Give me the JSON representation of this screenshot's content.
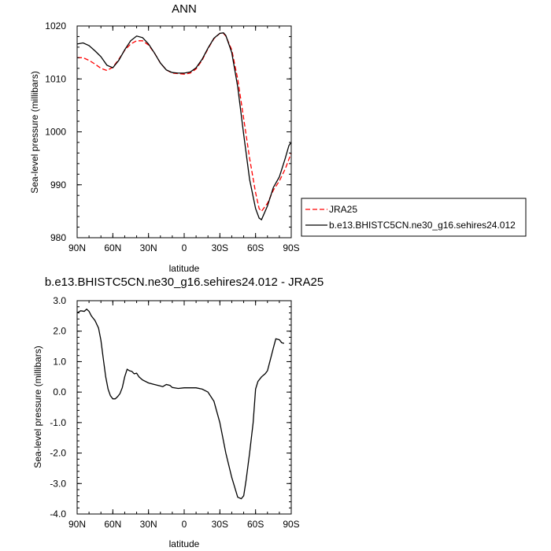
{
  "chart_data": [
    {
      "type": "line",
      "title": "ANN",
      "xlabel": "latitude",
      "ylabel": "Sea-level pressure (millibars)",
      "xlim": [
        90,
        -90
      ],
      "ylim": [
        980,
        1020
      ],
      "x_ticks": [
        90,
        60,
        30,
        0,
        -30,
        -60,
        -90
      ],
      "x_tick_labels": [
        "90N",
        "60N",
        "30N",
        "0",
        "30S",
        "60S",
        "90S"
      ],
      "y_ticks": [
        980,
        990,
        1000,
        1010,
        1020
      ],
      "y_tick_labels": [
        "980",
        "990",
        "1000",
        "1010",
        "1020"
      ],
      "legend_position": "right",
      "series": [
        {
          "name": "JRA25",
          "color": "#ff0000",
          "dash": "dashed",
          "points": [
            [
              90,
              1014.0
            ],
            [
              85,
              1014.0
            ],
            [
              80,
              1013.5
            ],
            [
              75,
              1012.8
            ],
            [
              70,
              1012.0
            ],
            [
              65,
              1011.6
            ],
            [
              60,
              1012.2
            ],
            [
              55,
              1013.7
            ],
            [
              50,
              1015.4
            ],
            [
              45,
              1016.6
            ],
            [
              40,
              1017.2
            ],
            [
              35,
              1017.2
            ],
            [
              30,
              1016.4
            ],
            [
              25,
              1014.9
            ],
            [
              20,
              1013.0
            ],
            [
              15,
              1011.7
            ],
            [
              10,
              1011.1
            ],
            [
              5,
              1011.0
            ],
            [
              0,
              1010.9
            ],
            [
              -5,
              1011.1
            ],
            [
              -10,
              1011.9
            ],
            [
              -15,
              1013.5
            ],
            [
              -20,
              1015.7
            ],
            [
              -25,
              1017.6
            ],
            [
              -30,
              1018.6
            ],
            [
              -33,
              1018.6
            ],
            [
              -35,
              1018.1
            ],
            [
              -40,
              1015.5
            ],
            [
              -45,
              1010.0
            ],
            [
              -50,
              1002.5
            ],
            [
              -55,
              995.0
            ],
            [
              -60,
              988.5
            ],
            [
              -63,
              985.5
            ],
            [
              -65,
              985.0
            ],
            [
              -70,
              986.5
            ],
            [
              -75,
              989.0
            ],
            [
              -80,
              990.7
            ],
            [
              -85,
              993.0
            ],
            [
              -90,
              996.0
            ]
          ]
        },
        {
          "name": "b.e13.BHISTC5CN.ne30_g16.sehires24.012",
          "color": "#000000",
          "dash": "solid",
          "points": [
            [
              90,
              1016.6
            ],
            [
              85,
              1016.8
            ],
            [
              80,
              1016.3
            ],
            [
              75,
              1015.3
            ],
            [
              70,
              1014.2
            ],
            [
              65,
              1012.6
            ],
            [
              60,
              1012.1
            ],
            [
              55,
              1013.5
            ],
            [
              50,
              1015.5
            ],
            [
              45,
              1017.2
            ],
            [
              40,
              1018.1
            ],
            [
              35,
              1017.8
            ],
            [
              30,
              1016.6
            ],
            [
              25,
              1014.9
            ],
            [
              20,
              1013.0
            ],
            [
              15,
              1011.7
            ],
            [
              10,
              1011.2
            ],
            [
              5,
              1011.1
            ],
            [
              0,
              1011.1
            ],
            [
              -5,
              1011.3
            ],
            [
              -10,
              1012.1
            ],
            [
              -15,
              1013.7
            ],
            [
              -20,
              1015.8
            ],
            [
              -25,
              1017.7
            ],
            [
              -30,
              1018.6
            ],
            [
              -33,
              1018.7
            ],
            [
              -35,
              1018.2
            ],
            [
              -40,
              1015.0
            ],
            [
              -45,
              1008.5
            ],
            [
              -50,
              999.5
            ],
            [
              -55,
              991.0
            ],
            [
              -60,
              985.5
            ],
            [
              -63,
              983.7
            ],
            [
              -65,
              983.4
            ],
            [
              -70,
              986.0
            ],
            [
              -75,
              989.5
            ],
            [
              -80,
              991.5
            ],
            [
              -85,
              995.0
            ],
            [
              -88,
              997.4
            ],
            [
              -90,
              998.0
            ]
          ]
        }
      ]
    },
    {
      "type": "line",
      "title": "b.e13.BHISTC5CN.ne30_g16.sehires24.012 - JRA25",
      "xlabel": "latitude",
      "ylabel": "Sea-level pressure (millibars)",
      "xlim": [
        90,
        -90
      ],
      "ylim": [
        -4.0,
        3.0
      ],
      "x_ticks": [
        90,
        60,
        30,
        0,
        -30,
        -60,
        -90
      ],
      "x_tick_labels": [
        "90N",
        "60N",
        "30N",
        "0",
        "30S",
        "60S",
        "90S"
      ],
      "y_ticks": [
        3.0,
        2.0,
        1.0,
        0.0,
        -1.0,
        -2.0,
        -3.0,
        -4.0
      ],
      "y_tick_labels": [
        "3.0",
        "2.0",
        "1.0",
        "0.0",
        "-1.0",
        "-2.0",
        "-3.0",
        "-4.0"
      ],
      "series": [
        {
          "color": "#000000",
          "dash": "solid",
          "points": [
            [
              90,
              2.6
            ],
            [
              87,
              2.67
            ],
            [
              84,
              2.65
            ],
            [
              82,
              2.72
            ],
            [
              80,
              2.65
            ],
            [
              78,
              2.5
            ],
            [
              75,
              2.35
            ],
            [
              72,
              2.1
            ],
            [
              70,
              1.7
            ],
            [
              68,
              1.1
            ],
            [
              66,
              0.5
            ],
            [
              64,
              0.1
            ],
            [
              62,
              -0.12
            ],
            [
              60,
              -0.22
            ],
            [
              58,
              -0.22
            ],
            [
              56,
              -0.15
            ],
            [
              54,
              -0.05
            ],
            [
              52,
              0.15
            ],
            [
              50,
              0.5
            ],
            [
              48,
              0.75
            ],
            [
              46,
              0.7
            ],
            [
              44,
              0.68
            ],
            [
              42,
              0.6
            ],
            [
              40,
              0.62
            ],
            [
              38,
              0.5
            ],
            [
              35,
              0.4
            ],
            [
              30,
              0.3
            ],
            [
              25,
              0.25
            ],
            [
              20,
              0.2
            ],
            [
              18,
              0.18
            ],
            [
              15,
              0.25
            ],
            [
              12,
              0.22
            ],
            [
              10,
              0.15
            ],
            [
              5,
              0.12
            ],
            [
              0,
              0.14
            ],
            [
              -5,
              0.14
            ],
            [
              -10,
              0.14
            ],
            [
              -15,
              0.1
            ],
            [
              -20,
              0.0
            ],
            [
              -25,
              -0.3
            ],
            [
              -30,
              -1.0
            ],
            [
              -35,
              -2.0
            ],
            [
              -40,
              -2.8
            ],
            [
              -45,
              -3.45
            ],
            [
              -48,
              -3.5
            ],
            [
              -50,
              -3.4
            ],
            [
              -52,
              -2.9
            ],
            [
              -55,
              -2.0
            ],
            [
              -58,
              -1.0
            ],
            [
              -60,
              0.1
            ],
            [
              -62,
              0.35
            ],
            [
              -65,
              0.5
            ],
            [
              -68,
              0.6
            ],
            [
              -70,
              0.7
            ],
            [
              -72,
              1.0
            ],
            [
              -75,
              1.45
            ],
            [
              -77,
              1.75
            ],
            [
              -80,
              1.72
            ],
            [
              -82,
              1.62
            ],
            [
              -84,
              1.6
            ]
          ]
        }
      ]
    }
  ]
}
